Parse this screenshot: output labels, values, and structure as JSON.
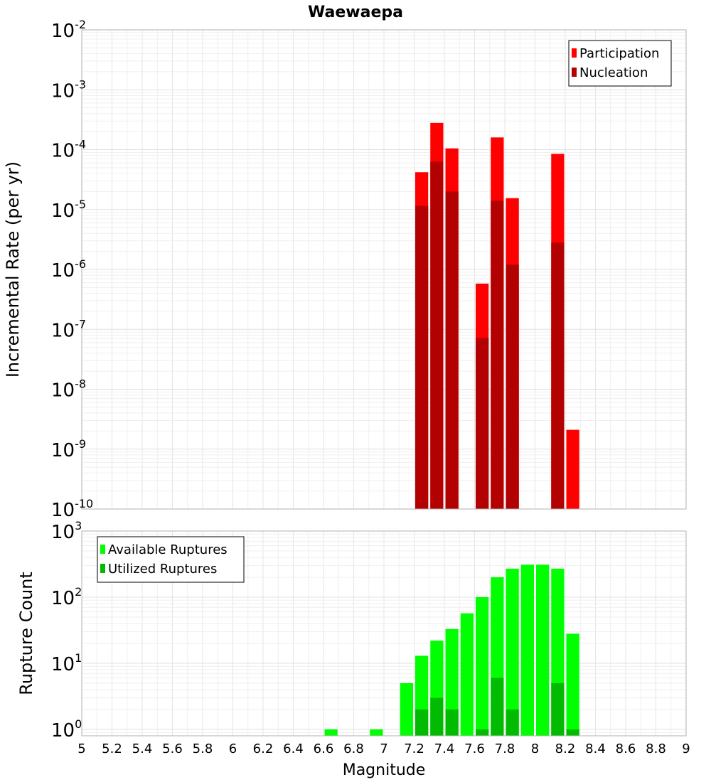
{
  "chart_data": [
    {
      "type": "bar",
      "title": "Waewaepa",
      "xlabel": "",
      "ylabel": "Incremental Rate (per yr)",
      "yscale": "log",
      "xlim": [
        5,
        9
      ],
      "ylim": [
        1e-10,
        0.01
      ],
      "bar_width": 0.1,
      "legend_position": "top-right",
      "y_ticks": [
        {
          "base": "10",
          "exp": "-10",
          "value": 1e-10
        },
        {
          "base": "10",
          "exp": "-9",
          "value": 1e-09
        },
        {
          "base": "10",
          "exp": "-8",
          "value": 1e-08
        },
        {
          "base": "10",
          "exp": "-7",
          "value": 1e-07
        },
        {
          "base": "10",
          "exp": "-6",
          "value": 1e-06
        },
        {
          "base": "10",
          "exp": "-5",
          "value": 1e-05
        },
        {
          "base": "10",
          "exp": "-4",
          "value": 0.0001
        },
        {
          "base": "10",
          "exp": "-3",
          "value": 0.001
        },
        {
          "base": "10",
          "exp": "-2",
          "value": 0.01
        }
      ],
      "series": [
        {
          "name": "Participation",
          "color": "#ff0000",
          "x": [
            7.25,
            7.35,
            7.45,
            7.65,
            7.75,
            7.85,
            8.15,
            8.25
          ],
          "values": [
            4.2e-05,
            0.00028,
            0.000105,
            5.8e-07,
            0.00016,
            1.55e-05,
            8.5e-05,
            2.1e-09
          ]
        },
        {
          "name": "Nucleation",
          "color": "#b30000",
          "x": [
            7.25,
            7.35,
            7.45,
            7.65,
            7.75,
            7.85,
            8.15
          ],
          "values": [
            1.15e-05,
            6.3e-05,
            2e-05,
            7.2e-08,
            1.4e-05,
            1.2e-06,
            2.8e-06
          ]
        }
      ]
    },
    {
      "type": "bar",
      "title": "",
      "xlabel": "Magnitude",
      "ylabel": "Rupture Count",
      "yscale": "log",
      "xlim": [
        5,
        9
      ],
      "ylim": [
        0.8,
        1000
      ],
      "bar_width": 0.1,
      "legend_position": "top-left",
      "x_tick_labels": [
        "5",
        "5.2",
        "5.4",
        "5.6",
        "5.8",
        "6",
        "6.2",
        "6.4",
        "6.6",
        "6.8",
        "7",
        "7.2",
        "7.4",
        "7.6",
        "7.8",
        "8",
        "8.2",
        "8.4",
        "8.6",
        "8.8",
        "9"
      ],
      "y_ticks": [
        {
          "base": "10",
          "exp": "0",
          "value": 1
        },
        {
          "base": "10",
          "exp": "1",
          "value": 10
        },
        {
          "base": "10",
          "exp": "2",
          "value": 100
        },
        {
          "base": "10",
          "exp": "3",
          "value": 1000
        }
      ],
      "series": [
        {
          "name": "Available Ruptures",
          "color": "#00ff00",
          "x": [
            6.65,
            6.95,
            7.15,
            7.25,
            7.35,
            7.45,
            7.55,
            7.65,
            7.75,
            7.85,
            7.95,
            8.05,
            8.15,
            8.25
          ],
          "values": [
            1,
            1,
            5,
            13,
            22,
            33,
            57,
            100,
            200,
            270,
            310,
            310,
            270,
            28
          ]
        },
        {
          "name": "Utilized Ruptures",
          "color": "#00bb00",
          "x": [
            7.25,
            7.35,
            7.45,
            7.65,
            7.75,
            7.85,
            8.15,
            8.25
          ],
          "values": [
            2,
            3,
            2,
            1,
            6,
            2,
            5,
            1
          ]
        }
      ]
    }
  ]
}
